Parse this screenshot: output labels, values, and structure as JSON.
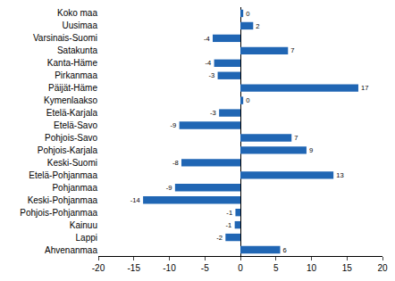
{
  "chart_data": {
    "type": "bar",
    "orientation": "horizontal",
    "categories": [
      "Koko maa",
      "Uusimaa",
      "Varsinais-Suomi",
      "Satakunta",
      "Kanta-Häme",
      "Pirkanmaa",
      "Päijät-Häme",
      "Kymenlaakso",
      "Etelä-Karjala",
      "Etelä-Savo",
      "Pohjois-Savo",
      "Pohjois-Karjala",
      "Keski-Suomi",
      "Etelä-Pohjanmaa",
      "Pohjanmaa",
      "Keski-Pohjanmaa",
      "Pohjois-Pohjanmaa",
      "Kainuu",
      "Lappi",
      "Ahvenanmaa"
    ],
    "values": [
      0.4,
      1.8,
      -3.9,
      6.7,
      -3.7,
      -3.2,
      16.6,
      0.4,
      -3.0,
      -8.6,
      7.2,
      9.3,
      -8.3,
      13.1,
      -9.2,
      -13.7,
      -0.7,
      -0.8,
      -2.1,
      5.6
    ],
    "value_labels": [
      "0",
      "2",
      "-4",
      "7",
      "-4",
      "-3",
      "17",
      "0",
      "-3",
      "-9",
      "7",
      "9",
      "-8",
      "13",
      "-9",
      "-14",
      "-1",
      "-1",
      "-2",
      "6"
    ],
    "color": "#2066b4",
    "xlim": [
      -20,
      20
    ],
    "xticks": [
      -20,
      -15,
      -10,
      -5,
      0,
      5,
      10,
      15,
      20
    ],
    "grid": false,
    "data_labels": true
  }
}
